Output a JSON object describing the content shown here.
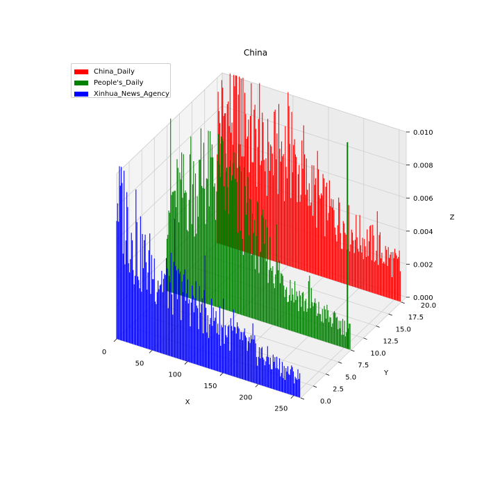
{
  "chart_data": {
    "type": "bar3d",
    "title": "China",
    "xlabel": "X",
    "ylabel": "Y",
    "zlabel": "Z",
    "xlim": [
      0,
      260
    ],
    "ylim": [
      0,
      21
    ],
    "zlim": [
      0,
      0.01
    ],
    "xticks": [
      "0",
      "50",
      "100",
      "150",
      "200",
      "250"
    ],
    "yticks": [
      "0.0",
      "2.5",
      "5.0",
      "7.5",
      "10.0",
      "12.5",
      "15.0",
      "17.5",
      "20.0"
    ],
    "zticks": [
      "0.000",
      "0.002",
      "0.004",
      "0.006",
      "0.008",
      "0.010"
    ],
    "legend_position": "upper-left",
    "grid": true,
    "series": [
      {
        "name": "China_Daily",
        "color": "#ff0000",
        "y": 20,
        "x_start": 0,
        "x_end": 260,
        "approx_values": [
          0.0075,
          0.0085,
          0.006,
          0.007,
          0.005,
          0.004,
          0.0032,
          0.0028,
          0.002
        ]
      },
      {
        "name": "People's_Daily",
        "color": "#008000",
        "y": 10,
        "x_start": 0,
        "x_end": 260,
        "approx_values": [
          0.0055,
          0.0065,
          0.008,
          0.007,
          0.005,
          0.003,
          0.002,
          0.0015,
          0.0012
        ],
        "spike": {
          "x": 255,
          "value": 0.0125
        }
      },
      {
        "name": "Xinhua_News_Agency",
        "color": "#0000ff",
        "y": 0,
        "x_start": 0,
        "x_end": 260,
        "approx_values": [
          0.009,
          0.0055,
          0.0045,
          0.004,
          0.0032,
          0.0025,
          0.002,
          0.0015,
          0.0012
        ]
      }
    ]
  }
}
